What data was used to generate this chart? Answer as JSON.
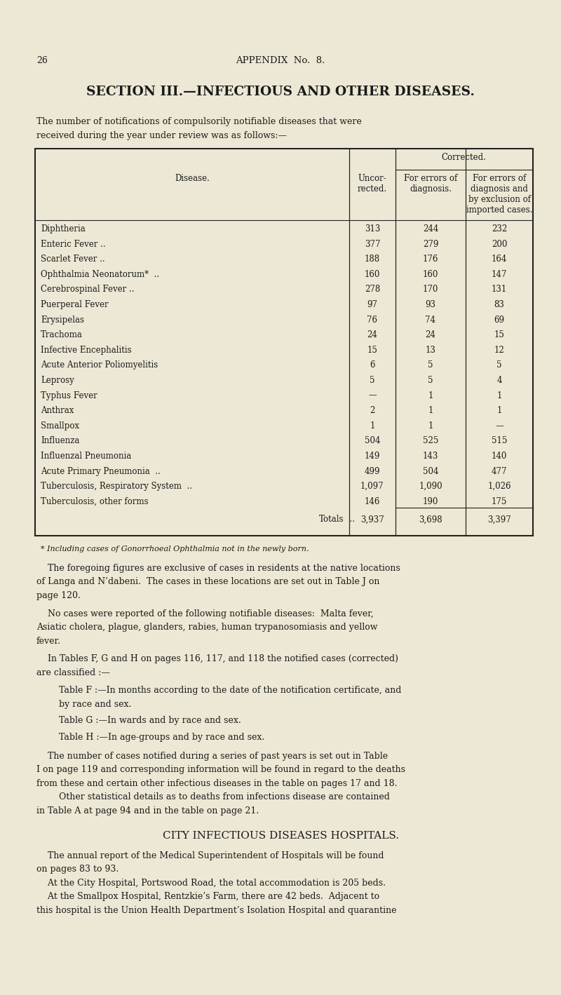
{
  "bg_color": "#ede8d5",
  "page_number": "26",
  "appendix_header": "APPENDIX  No.  8.",
  "section_title": "SECTION III.—INFECTIOUS AND OTHER DISEASES.",
  "intro_line1": "The number of notifications of compulsorily notifiable diseases that were",
  "intro_line2": "received during the year under review was as follows:—",
  "table_data": [
    [
      "Diphtheria",
      "313",
      "244",
      "232"
    ],
    [
      "Enteric Fever ..",
      "377",
      "279",
      "200"
    ],
    [
      "Scarlet Fever ..",
      "188",
      "176",
      "164"
    ],
    [
      "Ophthalmia Neonatorum*  ..",
      "160",
      "160",
      "147"
    ],
    [
      "Cerebrospinal Fever ..",
      "278",
      "170",
      "131"
    ],
    [
      "Puerperal Fever",
      "97",
      "93",
      "83"
    ],
    [
      "Erysipelas",
      "76",
      "74",
      "69"
    ],
    [
      "Trachoma",
      "24",
      "24",
      "15"
    ],
    [
      "Infective Encephalitis",
      "15",
      "13",
      "12"
    ],
    [
      "Acute Anterior Poliomyelitis",
      "6",
      "5",
      "5"
    ],
    [
      "Leprosy",
      "5",
      "5",
      "4"
    ],
    [
      "Typhus Fever",
      "—",
      "1",
      "1"
    ],
    [
      "Anthrax",
      "2",
      "1",
      "1"
    ],
    [
      "Smallpox",
      "1",
      "1",
      "—"
    ],
    [
      "Influenza",
      "504",
      "525",
      "515"
    ],
    [
      "Influenzal Pneumonia",
      "149",
      "143",
      "140"
    ],
    [
      "Acute Primary Pneumonia  ..",
      "499",
      "504",
      "477"
    ],
    [
      "Tuberculosis, Respiratory System  ..",
      "1,097",
      "1,090",
      "1,026"
    ],
    [
      "Tuberculosis, other forms",
      "146",
      "190",
      "175"
    ]
  ],
  "totals": [
    "Totals",
    "3,937",
    "3,698",
    "3,397"
  ],
  "footnote": "* Including cases of Gonorrhoeal Ophthalmia not in the newly born.",
  "body_paragraphs": [
    [
      "    The foregoing figures are exclusive of cases in residents at the native locations",
      "of Langa and N’dabeni.  The cases in these locations are set out in Table J on",
      "page 120."
    ],
    [
      "    No cases were reported of the following notifiable diseases:  Malta fever,",
      "Asiatic cholera, plague, glanders, rabies, human trypanosomiasis and yellow",
      "fever."
    ],
    [
      "    In Tables F, G and H on pages 116, 117, and 118 the notified cases (corrected)",
      "are classified :—"
    ]
  ],
  "table_refs": [
    "        Table F :—In months according to the date of the notification certificate, and",
    "        by race and sex.",
    "        Table G :—In wards and by race and sex.",
    "        Table H :—In age-groups and by race and sex."
  ],
  "para4_lines": [
    "    The number of cases notified during a series of past years is set out in Table",
    "I on page 119 and corresponding information will be found in regard to the deaths",
    "from these and certain other infectious diseases in the table on pages 17 and 18.",
    "        Other statistical details as to deaths from infections disease are contained",
    "in Table A at page 94 and in the table on page 21."
  ],
  "section2_title": "CITY INFECTIOUS DISEASES HOSPITALS.",
  "para5_lines": [
    "    The annual report of the Medical Superintendent of Hospitals will be found",
    "on pages 83 to 93.",
    "    At the City Hospital, Portswood Road, the total accommodation is 205 beds.",
    "    At the Smallpox Hospital, Rentzkie’s Farm, there are 42 beds.  Adjacent to",
    "this hospital is the Union Health Department’s Isolation Hospital and quarantine"
  ]
}
